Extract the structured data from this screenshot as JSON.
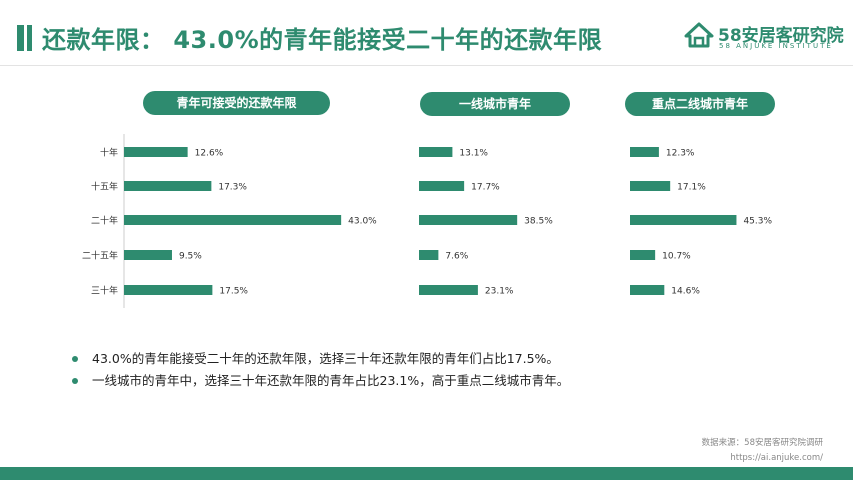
{
  "page": {
    "title": "还款年限： 43.0%的青年能接受二十年的还款年限"
  },
  "logo": {
    "name": "58安居客研究院",
    "sub": "58 ANJUKE INSTITUTE"
  },
  "colors": {
    "accent": "#2e8b6f",
    "axis": "#cccccc"
  },
  "chart_data": [
    {
      "type": "bar",
      "title": "青年可接受的还款年限",
      "categories": [
        "十年",
        "十五年",
        "二十年",
        "二十五年",
        "三十年"
      ],
      "values": [
        12.6,
        17.3,
        43.0,
        9.5,
        17.5
      ],
      "value_labels": [
        "12.6%",
        "17.3%",
        "43.0%",
        "9.5%",
        "17.5%"
      ]
    },
    {
      "type": "bar",
      "title": "一线城市青年",
      "categories": [
        "十年",
        "十五年",
        "二十年",
        "二十五年",
        "三十年"
      ],
      "values": [
        13.1,
        17.7,
        38.5,
        7.6,
        23.1
      ],
      "value_labels": [
        "13.1%",
        "17.7%",
        "38.5%",
        "7.6%",
        "23.1%"
      ]
    },
    {
      "type": "bar",
      "title": "重点二线城市青年",
      "categories": [
        "十年",
        "十五年",
        "二十年",
        "二十五年",
        "三十年"
      ],
      "values": [
        12.3,
        17.1,
        45.3,
        10.7,
        14.6
      ],
      "value_labels": [
        "12.3%",
        "17.1%",
        "45.3%",
        "10.7%",
        "14.6%"
      ]
    }
  ],
  "bullets": [
    "43.0%的青年能接受二十年的还款年限，选择三十年还款年限的青年们占比17.5%。",
    "一线城市的青年中，选择三十年还款年限的青年占比23.1%，高于重点二线城市青年。"
  ],
  "source": {
    "line1": "数据来源：58安居客研究院调研",
    "line2": "https://ai.anjuke.com/"
  }
}
